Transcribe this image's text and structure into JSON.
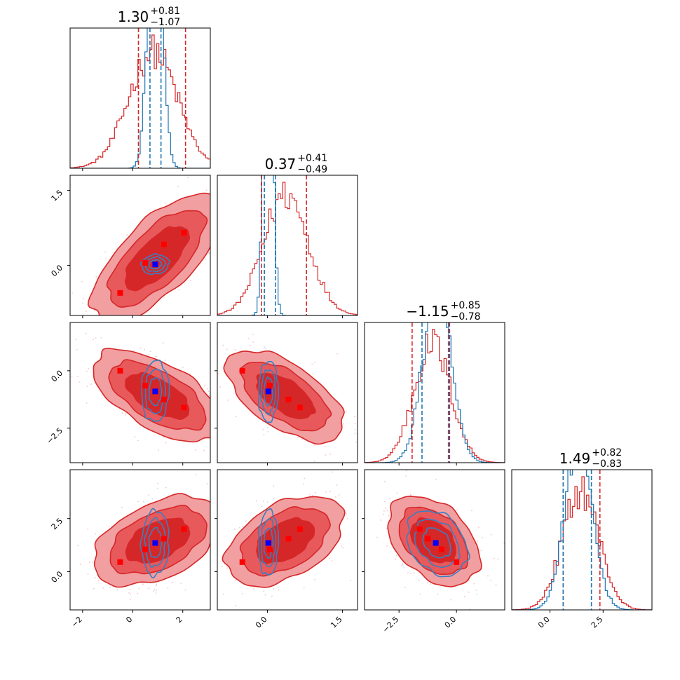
{
  "chart_data": {
    "type": "corner",
    "grid": false,
    "legend": "none",
    "colors": {
      "red": "#d62728",
      "red_light": "#f09a9c",
      "red_mid": "#e8595c",
      "blue": "#1f77b4",
      "marker_red": "#ff0000",
      "marker_blue": "#0000ff"
    },
    "params": [
      {
        "title": {
          "median": "1.30",
          "plus": "+0.81",
          "minus": "−1.07"
        },
        "range": [
          -2.5,
          3.1
        ],
        "ticks": [
          -2,
          0,
          2
        ],
        "tick_labels": [
          "−2",
          "0",
          "2"
        ]
      },
      {
        "title": {
          "median": "0.37",
          "plus": "+0.41",
          "minus": "−0.49"
        },
        "range": [
          -1.0,
          1.8
        ],
        "ticks": [
          0.0,
          1.5
        ],
        "tick_labels": [
          "0.0",
          "1.5"
        ]
      },
      {
        "title": {
          "median": "−1.15",
          "plus": "+0.85",
          "minus": "−0.78"
        },
        "range": [
          -4.0,
          2.1
        ],
        "ticks": [
          -2.5,
          0.0
        ],
        "tick_labels": [
          "−2.5",
          "0.0"
        ]
      },
      {
        "title": {
          "median": "1.49",
          "plus": "+0.82",
          "minus": "−0.83"
        },
        "range": [
          -1.8,
          4.8
        ],
        "ticks": [
          0.0,
          2.5
        ],
        "tick_labels": [
          "0.0",
          "2.5"
        ]
      }
    ],
    "diagonal": [
      {
        "red": {
          "mean": 1.2,
          "sd": 1.05,
          "skew": -0.5,
          "ymax": 1.0,
          "quantiles": [
            0.23,
            2.11
          ]
        },
        "blue": {
          "mean": 0.9,
          "sd": 0.26,
          "ymax": 2.6,
          "quantiles": [
            0.69,
            1.13
          ]
        }
      },
      {
        "red": {
          "mean": 0.37,
          "sd": 0.45,
          "ymax": 1.0,
          "quantiles": [
            -0.12,
            0.78
          ]
        },
        "blue": {
          "mean": 0.02,
          "sd": 0.08,
          "ymax": 3.4,
          "quantiles": [
            -0.06,
            0.16
          ]
        }
      },
      {
        "red": {
          "mean": -1.05,
          "sd": 0.8,
          "ymax": 1.0,
          "quantiles": [
            -1.93,
            -0.3
          ]
        },
        "blue": {
          "mean": -0.85,
          "sd": 0.6,
          "ymax": 1.45,
          "quantiles": [
            -1.5,
            -0.35
          ]
        }
      },
      {
        "red": {
          "mean": 1.45,
          "sd": 0.85,
          "ymax": 1.0,
          "quantiles": [
            0.62,
            2.35
          ]
        },
        "blue": {
          "mean": 1.35,
          "sd": 0.65,
          "ymax": 1.32,
          "quantiles": [
            0.62,
            1.95
          ]
        }
      }
    ],
    "pairs": [
      {
        "i": 1,
        "j": 0,
        "red": {
          "center": [
            0.95,
            0.15
          ],
          "sd": [
            1.1,
            0.55
          ],
          "rho": 0.7
        },
        "blue": {
          "center": [
            0.9,
            0.02
          ],
          "sd": [
            0.25,
            0.09
          ],
          "rho": 0.1
        },
        "red_points": [
          [
            -0.5,
            -0.55
          ],
          [
            0.5,
            0.05
          ],
          [
            1.25,
            0.42
          ],
          [
            2.05,
            0.65
          ]
        ],
        "blue_point": [
          0.9,
          0.02
        ]
      },
      {
        "i": 2,
        "j": 0,
        "red": {
          "center": [
            1.0,
            -1.1
          ],
          "sd": [
            1.1,
            0.85
          ],
          "rho": -0.6
        },
        "blue": {
          "center": [
            0.9,
            -0.9
          ],
          "sd": [
            0.25,
            0.6
          ],
          "rho": 0.05
        },
        "red_points": [
          [
            -0.5,
            0.0
          ],
          [
            0.5,
            -0.65
          ],
          [
            1.25,
            -1.25
          ],
          [
            2.05,
            -1.6
          ]
        ],
        "blue_point": [
          0.9,
          -0.9
        ]
      },
      {
        "i": 2,
        "j": 1,
        "red": {
          "center": [
            0.35,
            -1.1
          ],
          "sd": [
            0.5,
            0.85
          ],
          "rho": -0.6
        },
        "blue": {
          "center": [
            0.02,
            -0.9
          ],
          "sd": [
            0.09,
            0.6
          ],
          "rho": 0.05
        },
        "red_points": [
          [
            -0.5,
            0.0
          ],
          [
            0.05,
            -0.65
          ],
          [
            0.42,
            -1.25
          ],
          [
            0.65,
            -1.6
          ]
        ],
        "blue_point": [
          0.02,
          -0.9
        ]
      },
      {
        "i": 3,
        "j": 0,
        "red": {
          "center": [
            1.0,
            1.45
          ],
          "sd": [
            1.1,
            0.9
          ],
          "rho": 0.45
        },
        "blue": {
          "center": [
            0.9,
            1.35
          ],
          "sd": [
            0.25,
            0.7
          ],
          "rho": 0.05
        },
        "red_points": [
          [
            -0.5,
            0.45
          ],
          [
            0.5,
            1.05
          ],
          [
            1.25,
            1.55
          ],
          [
            2.05,
            2.0
          ]
        ],
        "blue_point": [
          0.9,
          1.35
        ]
      },
      {
        "i": 3,
        "j": 1,
        "red": {
          "center": [
            0.35,
            1.45
          ],
          "sd": [
            0.5,
            0.9
          ],
          "rho": 0.45
        },
        "blue": {
          "center": [
            0.02,
            1.35
          ],
          "sd": [
            0.09,
            0.7
          ],
          "rho": 0.05
        },
        "red_points": [
          [
            -0.5,
            0.45
          ],
          [
            0.05,
            1.05
          ],
          [
            0.42,
            1.55
          ],
          [
            0.65,
            2.0
          ]
        ],
        "blue_point": [
          0.02,
          1.35
        ]
      },
      {
        "i": 3,
        "j": 2,
        "red": {
          "center": [
            -1.0,
            1.45
          ],
          "sd": [
            0.85,
            0.9
          ],
          "rho": -0.4
        },
        "blue": {
          "center": [
            -0.85,
            1.35
          ],
          "sd": [
            0.6,
            0.7
          ],
          "rho": -0.3
        },
        "red_points": [
          [
            -1.6,
            2.0
          ],
          [
            -1.25,
            1.55
          ],
          [
            -0.65,
            1.05
          ],
          [
            0.0,
            0.45
          ]
        ],
        "blue_point": [
          -0.9,
          1.35
        ]
      }
    ]
  }
}
